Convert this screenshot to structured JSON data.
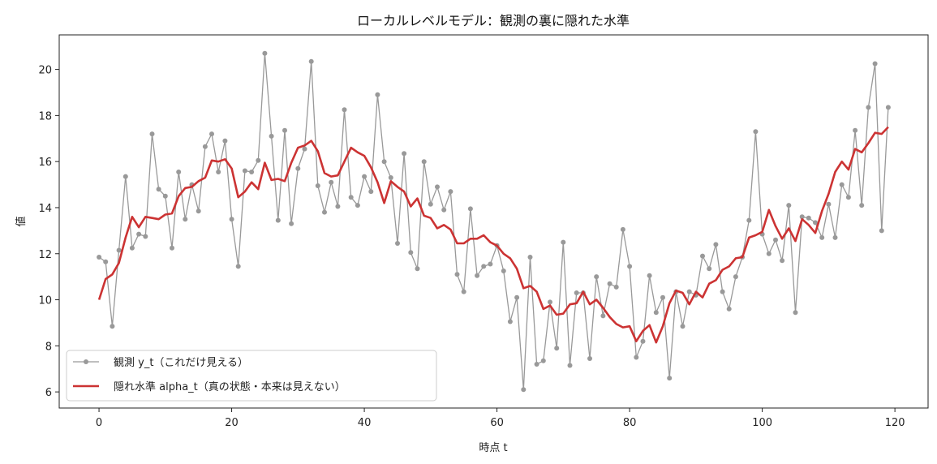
{
  "chart_data": {
    "type": "line",
    "title": "ローカルレベルモデル：観測の裏に隠れた水準",
    "xlabel": "時点 t",
    "ylabel": "値",
    "xlim": [
      -6,
      125
    ],
    "ylim": [
      5.3,
      21.5
    ],
    "xticks": [
      0,
      20,
      40,
      60,
      80,
      100,
      120
    ],
    "yticks": [
      6,
      8,
      10,
      12,
      14,
      16,
      18,
      20
    ],
    "grid": false,
    "legend_position": "lower-left",
    "colors": {
      "observed": "#999999",
      "hidden": "#cc3333"
    },
    "series": [
      {
        "name": "観測 y_t（これだけ見える）",
        "style": "line-with-markers",
        "x": [
          0,
          1,
          2,
          3,
          4,
          5,
          6,
          7,
          8,
          9,
          10,
          11,
          12,
          13,
          14,
          15,
          16,
          17,
          18,
          19,
          20,
          21,
          22,
          23,
          24,
          25,
          26,
          27,
          28,
          29,
          30,
          31,
          32,
          33,
          34,
          35,
          36,
          37,
          38,
          39,
          40,
          41,
          42,
          43,
          44,
          45,
          46,
          47,
          48,
          49,
          50,
          51,
          52,
          53,
          54,
          55,
          56,
          57,
          58,
          59,
          60,
          61,
          62,
          63,
          64,
          65,
          66,
          67,
          68,
          69,
          70,
          71,
          72,
          73,
          74,
          75,
          76,
          77,
          78,
          79,
          80,
          81,
          82,
          83,
          84,
          85,
          86,
          87,
          88,
          89,
          90,
          91,
          92,
          93,
          94,
          95,
          96,
          97,
          98,
          99,
          100,
          101,
          102,
          103,
          104,
          105,
          106,
          107,
          108,
          109,
          110,
          111,
          112,
          113,
          114,
          115,
          116,
          117,
          118,
          119
        ],
        "values": [
          11.85,
          11.65,
          8.85,
          12.15,
          15.35,
          12.25,
          12.85,
          12.75,
          17.2,
          14.8,
          14.5,
          12.25,
          15.55,
          13.5,
          15.0,
          13.85,
          16.65,
          17.2,
          15.55,
          16.9,
          13.5,
          11.45,
          15.6,
          15.55,
          16.05,
          20.7,
          17.1,
          13.45,
          17.35,
          13.3,
          15.7,
          16.55,
          20.35,
          14.95,
          13.8,
          15.1,
          14.05,
          18.25,
          14.45,
          14.1,
          15.35,
          14.7,
          18.9,
          16.0,
          15.3,
          12.45,
          16.35,
          12.05,
          11.35,
          16.0,
          14.15,
          14.9,
          13.9,
          14.7,
          11.1,
          10.35,
          13.95,
          11.05,
          11.45,
          11.55,
          12.35,
          11.25,
          9.05,
          10.1,
          6.1,
          11.85,
          7.2,
          7.35,
          9.9,
          7.9,
          12.5,
          7.15,
          10.3,
          10.3,
          7.45,
          11.0,
          9.3,
          10.7,
          10.55,
          13.05,
          11.45,
          7.5,
          8.2,
          11.05,
          9.45,
          10.1,
          6.6,
          10.35,
          8.85,
          10.35,
          10.2,
          11.9,
          11.35,
          12.4,
          10.35,
          9.6,
          11.0,
          11.85,
          13.45,
          17.3,
          12.85,
          12.0,
          12.6,
          11.7,
          14.1,
          9.45,
          13.6,
          13.55,
          13.35,
          12.7,
          14.15,
          12.7,
          15.0,
          14.45,
          17.35,
          14.1,
          18.35,
          20.25,
          13.0,
          18.35
        ]
      },
      {
        "name": "隠れ水準 alpha_t（真の状態・本来は見えない）",
        "style": "line",
        "x": [
          0,
          1,
          2,
          3,
          4,
          5,
          6,
          7,
          8,
          9,
          10,
          11,
          12,
          13,
          14,
          15,
          16,
          17,
          18,
          19,
          20,
          21,
          22,
          23,
          24,
          25,
          26,
          27,
          28,
          29,
          30,
          31,
          32,
          33,
          34,
          35,
          36,
          37,
          38,
          39,
          40,
          41,
          42,
          43,
          44,
          45,
          46,
          47,
          48,
          49,
          50,
          51,
          52,
          53,
          54,
          55,
          56,
          57,
          58,
          59,
          60,
          61,
          62,
          63,
          64,
          65,
          66,
          67,
          68,
          69,
          70,
          71,
          72,
          73,
          74,
          75,
          76,
          77,
          78,
          79,
          80,
          81,
          82,
          83,
          84,
          85,
          86,
          87,
          88,
          89,
          90,
          91,
          92,
          93,
          94,
          95,
          96,
          97,
          98,
          99,
          100,
          101,
          102,
          103,
          104,
          105,
          106,
          107,
          108,
          109,
          110,
          111,
          112,
          113,
          114,
          115,
          116,
          117,
          118,
          119
        ],
        "values": [
          10.0,
          10.9,
          11.1,
          11.6,
          12.7,
          13.6,
          13.15,
          13.6,
          13.55,
          13.5,
          13.7,
          13.75,
          14.5,
          14.85,
          14.9,
          15.15,
          15.3,
          16.05,
          16.0,
          16.1,
          15.7,
          14.45,
          14.7,
          15.1,
          14.8,
          15.95,
          15.2,
          15.25,
          15.15,
          15.95,
          16.6,
          16.7,
          16.9,
          16.45,
          15.5,
          15.35,
          15.4,
          16.0,
          16.6,
          16.4,
          16.25,
          15.75,
          15.1,
          14.2,
          15.15,
          14.9,
          14.7,
          14.05,
          14.4,
          13.65,
          13.55,
          13.1,
          13.25,
          13.05,
          12.45,
          12.45,
          12.65,
          12.65,
          12.8,
          12.5,
          12.35,
          12.0,
          11.8,
          11.35,
          10.5,
          10.6,
          10.35,
          9.6,
          9.75,
          9.35,
          9.4,
          9.8,
          9.85,
          10.35,
          9.8,
          10.0,
          9.65,
          9.25,
          8.95,
          8.8,
          8.85,
          8.2,
          8.65,
          8.9,
          8.15,
          8.85,
          9.85,
          10.4,
          10.3,
          9.8,
          10.35,
          10.1,
          10.7,
          10.85,
          11.3,
          11.45,
          11.8,
          11.85,
          12.7,
          12.8,
          12.95,
          13.9,
          13.2,
          12.65,
          13.1,
          12.55,
          13.5,
          13.25,
          12.9,
          13.85,
          14.6,
          15.55,
          16.0,
          15.65,
          16.55,
          16.4,
          16.8,
          17.25,
          17.2,
          17.5
        ]
      }
    ]
  }
}
